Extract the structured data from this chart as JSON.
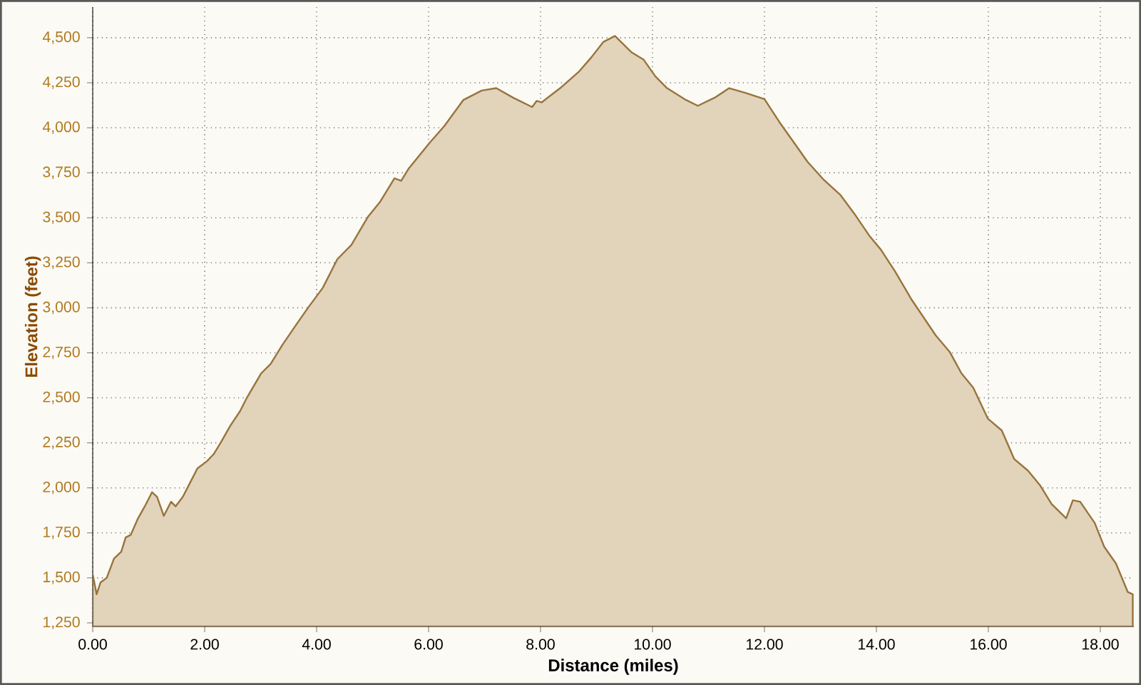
{
  "chart_data": {
    "type": "area",
    "xlabel": "Distance (miles)",
    "ylabel": "Elevation (feet)",
    "x": [
      0,
      0.07,
      0.14,
      0.25,
      0.38,
      0.51,
      0.59,
      0.68,
      0.81,
      0.93,
      1.06,
      1.15,
      1.27,
      1.4,
      1.48,
      1.61,
      1.74,
      1.87,
      2.04,
      2.16,
      2.29,
      2.46,
      2.63,
      2.76,
      3.01,
      3.18,
      3.39,
      3.65,
      3.86,
      4.11,
      4.37,
      4.62,
      4.92,
      5.13,
      5.39,
      5.51,
      5.64,
      6.02,
      6.28,
      6.62,
      6.95,
      7.21,
      7.51,
      7.85,
      7.93,
      8.02,
      8.35,
      8.69,
      8.91,
      9.12,
      9.33,
      9.63,
      9.84,
      10.05,
      10.26,
      10.6,
      10.81,
      11.11,
      11.37,
      11.66,
      12.0,
      12.26,
      12.47,
      12.77,
      13.06,
      13.36,
      13.61,
      13.87,
      14.08,
      14.33,
      14.63,
      15.06,
      15.31,
      15.52,
      15.73,
      15.99,
      16.24,
      16.46,
      16.71,
      16.92,
      17.13,
      17.39,
      17.51,
      17.64,
      17.9,
      18.07,
      18.28,
      18.49,
      18.58
    ],
    "series": [
      {
        "color": "#e2d3bb",
        "values": [
          1520,
          1409,
          1475,
          1500,
          1607,
          1646,
          1725,
          1739,
          1831,
          1897,
          1976,
          1950,
          1844,
          1923,
          1897,
          1950,
          2029,
          2108,
          2148,
          2187,
          2253,
          2346,
          2425,
          2504,
          2636,
          2689,
          2795,
          2913,
          3006,
          3111,
          3270,
          3349,
          3507,
          3587,
          3719,
          3705,
          3771,
          3917,
          4009,
          4154,
          4207,
          4220,
          4167,
          4115,
          4149,
          4141,
          4220,
          4313,
          4392,
          4476,
          4510,
          4418,
          4379,
          4286,
          4220,
          4154,
          4122,
          4167,
          4220,
          4194,
          4159,
          4035,
          3943,
          3811,
          3711,
          3626,
          3521,
          3402,
          3323,
          3204,
          3045,
          2847,
          2755,
          2636,
          2557,
          2385,
          2319,
          2161,
          2095,
          2016,
          1910,
          1831,
          1931,
          1923,
          1805,
          1673,
          1580,
          1422,
          1409
        ]
      }
    ],
    "xlim": [
      0,
      18.6
    ],
    "ylim": [
      1230,
      4670
    ],
    "xticks": [
      {
        "value": 0,
        "label": "0.00"
      },
      {
        "value": 2,
        "label": "2.00"
      },
      {
        "value": 4,
        "label": "4.00"
      },
      {
        "value": 6,
        "label": "6.00"
      },
      {
        "value": 8,
        "label": "8.00"
      },
      {
        "value": 10,
        "label": "10.00"
      },
      {
        "value": 12,
        "label": "12.00"
      },
      {
        "value": 14,
        "label": "14.00"
      },
      {
        "value": 16,
        "label": "16.00"
      },
      {
        "value": 18,
        "label": "18.00"
      }
    ],
    "yticks": [
      {
        "value": 1250,
        "label": "1,250"
      },
      {
        "value": 1500,
        "label": "1,500"
      },
      {
        "value": 1750,
        "label": "1,750"
      },
      {
        "value": 2000,
        "label": "2,000"
      },
      {
        "value": 2250,
        "label": "2,250"
      },
      {
        "value": 2500,
        "label": "2,500"
      },
      {
        "value": 2750,
        "label": "2,750"
      },
      {
        "value": 3000,
        "label": "3,000"
      },
      {
        "value": 3250,
        "label": "3,250"
      },
      {
        "value": 3500,
        "label": "3,500"
      },
      {
        "value": 3750,
        "label": "3,750"
      },
      {
        "value": 4000,
        "label": "4,000"
      },
      {
        "value": 4250,
        "label": "4,250"
      },
      {
        "value": 4500,
        "label": "4,500"
      }
    ],
    "grid": true,
    "line_style": "solid",
    "marker": "none"
  }
}
